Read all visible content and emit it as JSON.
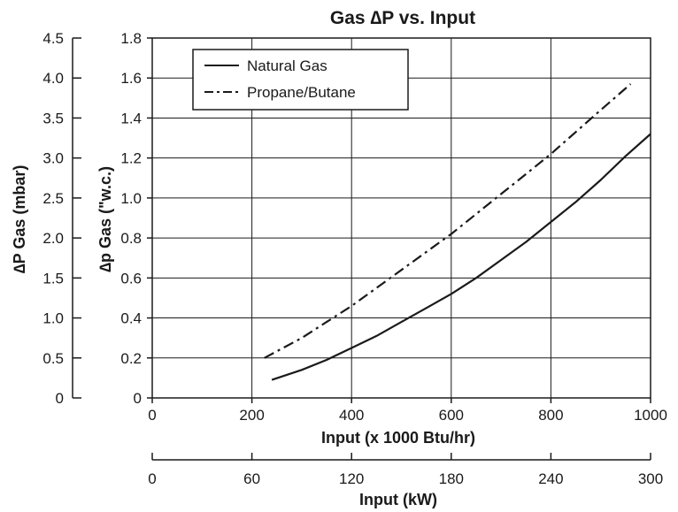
{
  "chart_data": {
    "type": "line",
    "title": "Gas ∆P vs. Input",
    "xlabel": "Input (x 1000 Btu/hr)",
    "ylabel": "∆p Gas (\"w.c.)",
    "xlim": [
      0,
      1000
    ],
    "ylim": [
      0,
      1.8
    ],
    "x_ticks": [
      "0",
      "200",
      "400",
      "600",
      "800",
      "1000"
    ],
    "y_ticks": [
      "0",
      "0.2",
      "0.4",
      "0.6",
      "0.8",
      "1.0",
      "1.2",
      "1.4",
      "1.6",
      "1.8"
    ],
    "secondary_x_axis": {
      "label": "Input (kW)",
      "range": [
        0,
        300
      ],
      "ticks": [
        "0",
        "60",
        "120",
        "180",
        "240",
        "300"
      ]
    },
    "secondary_y_axis": {
      "label": "∆P Gas (mbar)",
      "range": [
        0,
        4.5
      ],
      "ticks": [
        "0",
        "0.5",
        "1.0",
        "1.5",
        "2.0",
        "2.5",
        "3.0",
        "3.5",
        "4.0",
        "4.5"
      ]
    },
    "grid": true,
    "legend_position": "top-left",
    "series": [
      {
        "name": "Natural Gas",
        "style": "solid",
        "x": [
          240,
          300,
          350,
          400,
          450,
          500,
          550,
          600,
          650,
          700,
          750,
          800,
          850,
          900,
          950,
          1000
        ],
        "y": [
          0.09,
          0.14,
          0.19,
          0.25,
          0.31,
          0.38,
          0.45,
          0.52,
          0.6,
          0.69,
          0.78,
          0.88,
          0.98,
          1.09,
          1.21,
          1.32
        ]
      },
      {
        "name": "Propane/Butane",
        "style": "dashed",
        "x": [
          225,
          300,
          350,
          400,
          450,
          500,
          550,
          600,
          650,
          700,
          750,
          800,
          850,
          900,
          960
        ],
        "y": [
          0.2,
          0.3,
          0.38,
          0.46,
          0.55,
          0.64,
          0.73,
          0.82,
          0.92,
          1.02,
          1.12,
          1.22,
          1.33,
          1.44,
          1.57
        ]
      }
    ]
  }
}
